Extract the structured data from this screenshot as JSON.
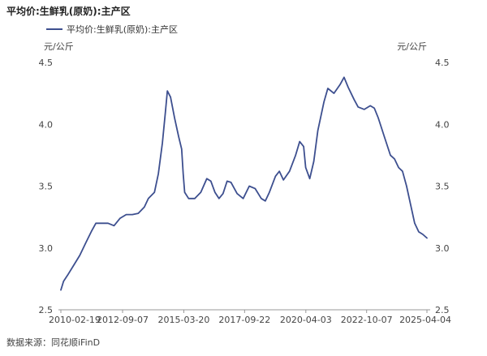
{
  "chart_data": {
    "type": "line",
    "title": "平均价:生鲜乳(原奶):主产区",
    "ylabel_left": "元/公斤",
    "ylabel_right": "元/公斤",
    "ylim": [
      2.5,
      4.5
    ],
    "y_ticks": [
      2.5,
      3.0,
      3.5,
      4.0,
      4.5
    ],
    "y_tick_labels": [
      "2.5",
      "3.0",
      "3.5",
      "4.0",
      "4.5"
    ],
    "x_ticks": [
      "2010-02-19",
      "2012-09-07",
      "2015-03-20",
      "2017-09-22",
      "2020-04-03",
      "2022-10-07",
      "2025-04-04"
    ],
    "grid": false,
    "legend_position": "top-left",
    "color": "#3d4f8f",
    "series": [
      {
        "name": "平均价:生鲜乳(原奶):主产区",
        "points": [
          [
            "2010-02-19",
            2.66
          ],
          [
            "2010-04-01",
            2.73
          ],
          [
            "2010-06-01",
            2.78
          ],
          [
            "2010-09-01",
            2.86
          ],
          [
            "2010-12-01",
            2.94
          ],
          [
            "2011-03-01",
            3.04
          ],
          [
            "2011-06-01",
            3.14
          ],
          [
            "2011-08-01",
            3.2
          ],
          [
            "2011-11-01",
            3.2
          ],
          [
            "2012-02-01",
            3.2
          ],
          [
            "2012-05-01",
            3.18
          ],
          [
            "2012-08-01",
            3.24
          ],
          [
            "2012-11-01",
            3.27
          ],
          [
            "2013-02-01",
            3.27
          ],
          [
            "2013-05-01",
            3.28
          ],
          [
            "2013-08-01",
            3.33
          ],
          [
            "2013-10-01",
            3.4
          ],
          [
            "2014-01-01",
            3.45
          ],
          [
            "2014-03-01",
            3.6
          ],
          [
            "2014-05-01",
            3.85
          ],
          [
            "2014-06-15",
            4.1
          ],
          [
            "2014-07-15",
            4.27
          ],
          [
            "2014-09-01",
            4.22
          ],
          [
            "2014-11-01",
            4.05
          ],
          [
            "2015-01-01",
            3.9
          ],
          [
            "2015-02-15",
            3.8
          ],
          [
            "2015-03-10",
            3.6
          ],
          [
            "2015-04-01",
            3.45
          ],
          [
            "2015-06-01",
            3.4
          ],
          [
            "2015-09-01",
            3.4
          ],
          [
            "2015-12-01",
            3.45
          ],
          [
            "2016-03-01",
            3.56
          ],
          [
            "2016-05-01",
            3.54
          ],
          [
            "2016-07-01",
            3.45
          ],
          [
            "2016-09-01",
            3.4
          ],
          [
            "2016-11-01",
            3.44
          ],
          [
            "2017-01-01",
            3.54
          ],
          [
            "2017-03-01",
            3.53
          ],
          [
            "2017-06-01",
            3.44
          ],
          [
            "2017-09-01",
            3.4
          ],
          [
            "2017-12-01",
            3.5
          ],
          [
            "2018-03-01",
            3.48
          ],
          [
            "2018-06-01",
            3.4
          ],
          [
            "2018-08-01",
            3.38
          ],
          [
            "2018-10-01",
            3.45
          ],
          [
            "2019-01-01",
            3.58
          ],
          [
            "2019-03-01",
            3.62
          ],
          [
            "2019-05-01",
            3.55
          ],
          [
            "2019-08-01",
            3.62
          ],
          [
            "2019-11-01",
            3.75
          ],
          [
            "2020-01-01",
            3.86
          ],
          [
            "2020-03-01",
            3.82
          ],
          [
            "2020-04-01",
            3.65
          ],
          [
            "2020-06-01",
            3.56
          ],
          [
            "2020-08-01",
            3.7
          ],
          [
            "2020-10-01",
            3.95
          ],
          [
            "2021-01-01",
            4.18
          ],
          [
            "2021-03-01",
            4.29
          ],
          [
            "2021-06-01",
            4.25
          ],
          [
            "2021-09-01",
            4.32
          ],
          [
            "2021-11-01",
            4.38
          ],
          [
            "2022-01-01",
            4.3
          ],
          [
            "2022-04-01",
            4.2
          ],
          [
            "2022-06-01",
            4.14
          ],
          [
            "2022-09-01",
            4.12
          ],
          [
            "2022-12-01",
            4.15
          ],
          [
            "2023-02-01",
            4.13
          ],
          [
            "2023-04-01",
            4.05
          ],
          [
            "2023-07-01",
            3.9
          ],
          [
            "2023-10-01",
            3.75
          ],
          [
            "2023-12-01",
            3.72
          ],
          [
            "2024-02-01",
            3.65
          ],
          [
            "2024-04-01",
            3.62
          ],
          [
            "2024-06-01",
            3.5
          ],
          [
            "2024-08-01",
            3.35
          ],
          [
            "2024-10-01",
            3.2
          ],
          [
            "2024-12-01",
            3.13
          ],
          [
            "2025-02-01",
            3.11
          ],
          [
            "2025-04-04",
            3.08
          ]
        ]
      }
    ]
  },
  "legend": {
    "label": "平均价:生鲜乳(原奶):主产区",
    "color": "#3d4f8f"
  },
  "source_note": "数据来源：同花顺iFinD"
}
